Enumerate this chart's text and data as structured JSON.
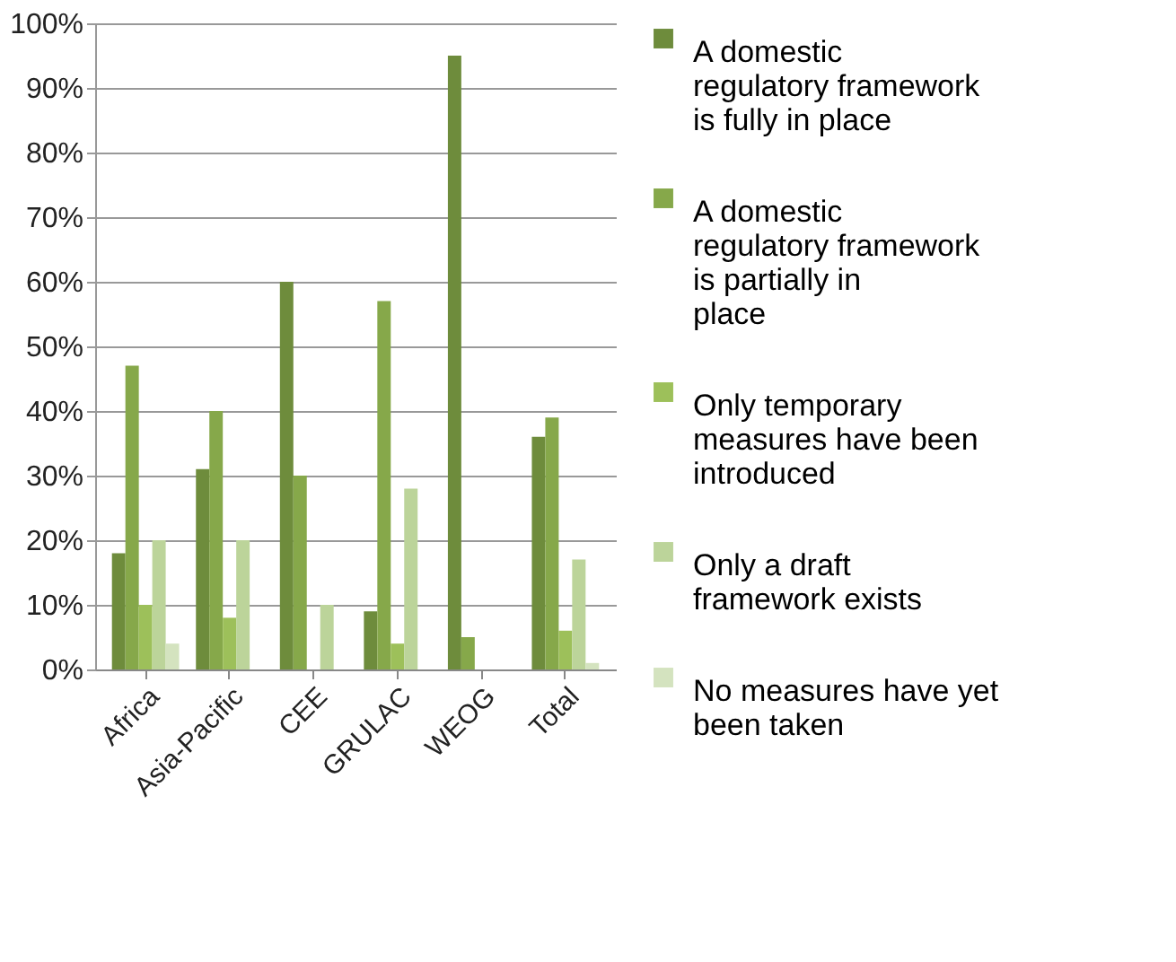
{
  "chart_data": {
    "type": "bar",
    "categories": [
      "Africa",
      "Asia-Pacific",
      "CEE",
      "GRULAC",
      "WEOG",
      "Total"
    ],
    "series": [
      {
        "name": "A domestic regulatory framework is fully in place",
        "color": "#6e8c3c",
        "values": [
          18,
          31,
          60,
          9,
          95,
          36
        ]
      },
      {
        "name": "A domestic regulatory framework is partially in place",
        "color": "#86a84a",
        "values": [
          47,
          40,
          30,
          57,
          5,
          39
        ]
      },
      {
        "name": "Only temporary measures have been introduced",
        "color": "#9dc05a",
        "values": [
          10,
          8,
          0,
          4,
          0,
          6
        ]
      },
      {
        "name": "Only a draft framework exists",
        "color": "#bcd49a",
        "values": [
          20,
          20,
          10,
          28,
          0,
          17
        ]
      },
      {
        "name": "No measures have yet been taken",
        "color": "#d4e3bf",
        "values": [
          4,
          0,
          0,
          0,
          0,
          1
        ]
      }
    ],
    "ylim": [
      0,
      100
    ],
    "yticks": [
      {
        "value": 0,
        "label": "0%"
      },
      {
        "value": 10,
        "label": "10%"
      },
      {
        "value": 20,
        "label": "20%"
      },
      {
        "value": 30,
        "label": "30%"
      },
      {
        "value": 40,
        "label": "40%"
      },
      {
        "value": 50,
        "label": "50%"
      },
      {
        "value": 60,
        "label": "60%"
      },
      {
        "value": 70,
        "label": "70%"
      },
      {
        "value": 80,
        "label": "80%"
      },
      {
        "value": 90,
        "label": "90%"
      },
      {
        "value": 100,
        "label": "100%"
      }
    ],
    "grid": "y",
    "legend": "right"
  }
}
